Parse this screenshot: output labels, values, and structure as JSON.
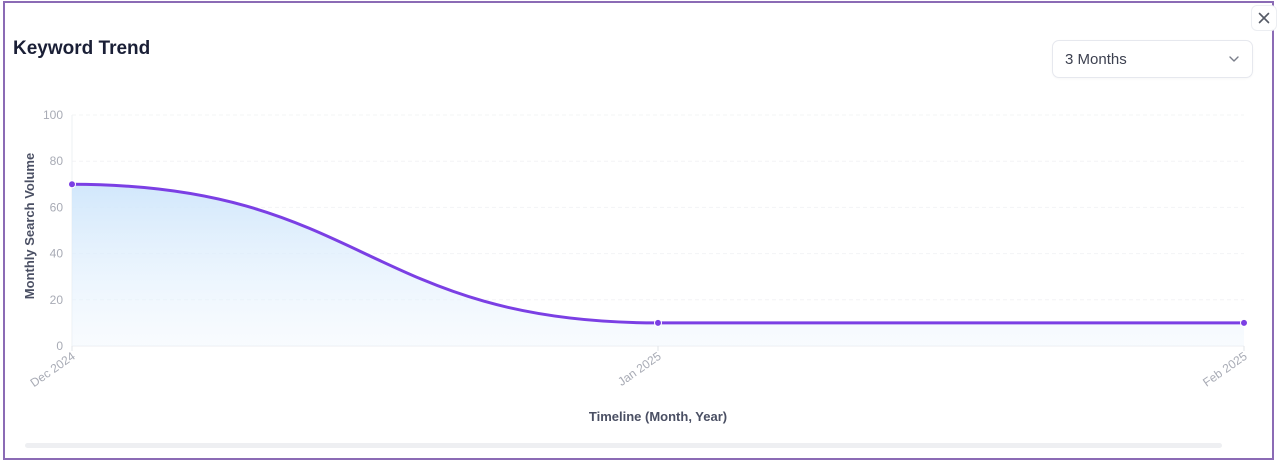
{
  "card": {
    "title": "Keyword Trend",
    "close_label": "Close",
    "range_select": {
      "value": "3 Months"
    }
  },
  "chart_data": {
    "type": "area",
    "title": "Keyword Trend",
    "categories": [
      "Dec 2024",
      "Jan 2025",
      "Feb 2025"
    ],
    "series": [
      {
        "name": "Monthly Search Volume",
        "values": [
          70,
          10,
          10
        ],
        "color": "#7b3fe4"
      }
    ],
    "xlabel": "Timeline (Month, Year)",
    "ylabel": "Monthly Search Volume",
    "ylim": [
      0,
      100
    ],
    "yticks": [
      "0",
      "20",
      "40",
      "60",
      "80",
      "100"
    ],
    "grid": true,
    "fill_color": "#cfe6fb",
    "legend": "none"
  }
}
